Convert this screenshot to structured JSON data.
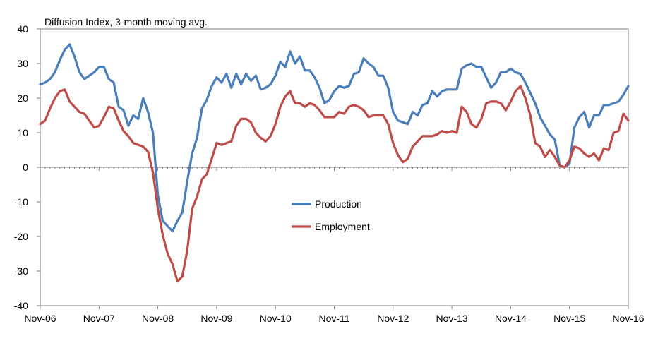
{
  "chart_data": {
    "type": "line",
    "title": "Diffusion Index, 3-month moving avg.",
    "xlabel": "",
    "ylabel": "",
    "ylim": [
      -40,
      40
    ],
    "yticks": [
      40,
      30,
      20,
      10,
      0,
      -10,
      -20,
      -30,
      -40
    ],
    "ytick_labels": [
      "40",
      "30",
      "20",
      "10",
      "0",
      "-10",
      "-20",
      "-30",
      "-40"
    ],
    "x_months": 121,
    "xtick_labels": [
      "Nov-06",
      "Nov-07",
      "Nov-08",
      "Nov-09",
      "Nov-10",
      "Nov-11",
      "Nov-12",
      "Nov-13",
      "Nov-14",
      "Nov-15",
      "Nov-16"
    ],
    "grid": false,
    "legend_position": "center",
    "series": [
      {
        "name": "Production",
        "color": "#4a7ebb",
        "values": [
          24.0,
          24.5,
          25.5,
          27.5,
          31.0,
          34.0,
          35.5,
          32.0,
          27.5,
          25.5,
          26.5,
          27.5,
          29.0,
          29.0,
          25.5,
          24.5,
          17.5,
          16.5,
          12.0,
          15.0,
          14.0,
          20.0,
          16.0,
          10.0,
          -8.0,
          -15.5,
          -17.0,
          -18.5,
          -15.5,
          -13.0,
          -4.0,
          4.0,
          8.5,
          17.0,
          19.5,
          23.5,
          26.0,
          24.5,
          27.0,
          23.0,
          27.0,
          24.0,
          27.0,
          25.0,
          26.5,
          22.5,
          23.0,
          24.0,
          26.5,
          30.5,
          29.0,
          33.5,
          30.0,
          32.0,
          28.0,
          28.0,
          26.0,
          23.0,
          18.5,
          19.5,
          22.0,
          23.5,
          23.0,
          23.5,
          27.0,
          27.5,
          31.5,
          30.0,
          29.0,
          26.5,
          26.5,
          23.0,
          16.0,
          13.5,
          13.0,
          12.5,
          16.0,
          15.0,
          18.0,
          18.5,
          22.0,
          20.5,
          22.0,
          22.5,
          22.5,
          22.5,
          28.5,
          29.5,
          30.0,
          29.0,
          29.0,
          26.0,
          23.0,
          24.5,
          27.5,
          27.5,
          28.5,
          27.5,
          27.0,
          24.5,
          21.5,
          18.5,
          14.5,
          12.0,
          9.5,
          8.0,
          0.5,
          0.0,
          1.0,
          11.5,
          14.5,
          16.0,
          11.5,
          15.0,
          15.0,
          18.0,
          18.0,
          18.5,
          19.0,
          21.0,
          23.5
        ]
      },
      {
        "name": "Employment",
        "color": "#be4b48",
        "values": [
          12.5,
          13.5,
          17.0,
          20.0,
          22.0,
          22.5,
          19.0,
          17.5,
          16.0,
          15.5,
          13.5,
          11.5,
          12.0,
          14.5,
          17.5,
          17.0,
          13.5,
          10.5,
          9.0,
          7.0,
          6.5,
          6.0,
          4.5,
          -1.5,
          -12.0,
          -19.5,
          -25.0,
          -28.0,
          -33.0,
          -31.5,
          -24.0,
          -12.0,
          -8.5,
          -3.5,
          -2.0,
          2.5,
          7.0,
          6.5,
          7.0,
          7.5,
          12.0,
          14.0,
          14.0,
          13.0,
          10.0,
          8.5,
          7.5,
          9.0,
          12.5,
          17.5,
          20.5,
          22.0,
          18.5,
          18.5,
          17.5,
          18.5,
          18.0,
          16.5,
          14.5,
          14.5,
          14.5,
          16.0,
          15.5,
          17.5,
          18.0,
          17.5,
          16.5,
          14.5,
          15.0,
          15.0,
          15.0,
          12.5,
          7.0,
          3.5,
          1.5,
          2.5,
          6.0,
          7.5,
          9.0,
          9.0,
          9.0,
          9.5,
          10.5,
          10.0,
          10.5,
          10.0,
          17.5,
          16.0,
          12.5,
          11.5,
          14.0,
          18.5,
          19.0,
          19.0,
          18.5,
          16.5,
          19.0,
          22.0,
          23.5,
          20.0,
          15.0,
          7.0,
          6.0,
          3.0,
          5.0,
          3.0,
          0.5,
          0.0,
          2.0,
          6.0,
          5.5,
          4.0,
          3.0,
          4.0,
          2.0,
          5.5,
          5.0,
          10.0,
          10.5,
          15.5,
          13.5
        ]
      }
    ]
  }
}
